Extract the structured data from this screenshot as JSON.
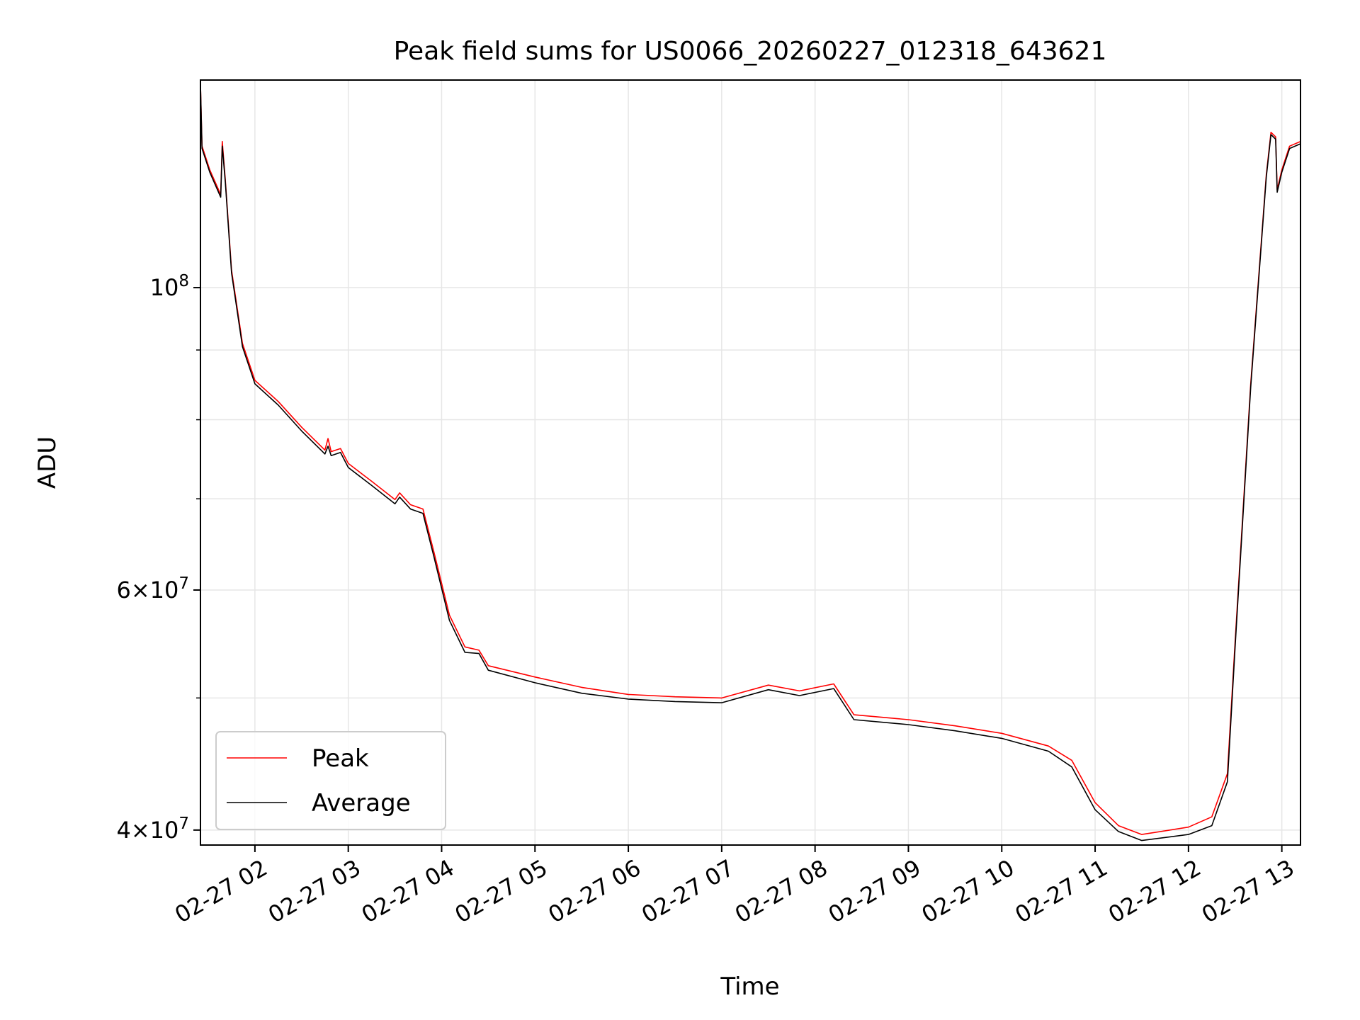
{
  "chart_data": {
    "type": "line",
    "title": "Peak field sums for US0066_20260227_012318_643621",
    "xlabel": "Time",
    "ylabel": "ADU",
    "yscale": "log",
    "xlim": [
      "2026-02-27 01:25",
      "2026-02-27 13:12"
    ],
    "ylim": [
      39000000.0,
      142000000.0
    ],
    "x_ticks": [
      {
        "value": "2026-02-27 02:00",
        "label": "02-27 02"
      },
      {
        "value": "2026-02-27 03:00",
        "label": "02-27 03"
      },
      {
        "value": "2026-02-27 04:00",
        "label": "02-27 04"
      },
      {
        "value": "2026-02-27 05:00",
        "label": "02-27 05"
      },
      {
        "value": "2026-02-27 06:00",
        "label": "02-27 06"
      },
      {
        "value": "2026-02-27 07:00",
        "label": "02-27 07"
      },
      {
        "value": "2026-02-27 08:00",
        "label": "02-27 08"
      },
      {
        "value": "2026-02-27 09:00",
        "label": "02-27 09"
      },
      {
        "value": "2026-02-27 10:00",
        "label": "02-27 10"
      },
      {
        "value": "2026-02-27 11:00",
        "label": "02-27 11"
      },
      {
        "value": "2026-02-27 12:00",
        "label": "02-27 12"
      },
      {
        "value": "2026-02-27 13:00",
        "label": "02-27 13"
      }
    ],
    "y_major_ticks": [
      {
        "value": 40000000.0,
        "mantissa": "4",
        "exponent": "7"
      },
      {
        "value": 60000000.0,
        "mantissa": "6",
        "exponent": "7"
      },
      {
        "value": 100000000.0,
        "mantissa": "",
        "exponent": "8"
      }
    ],
    "y_minor_ticks": [
      50000000.0,
      70000000.0,
      80000000.0,
      90000000.0
    ],
    "grid": true,
    "legend_position": "lower-left",
    "series": [
      {
        "name": "Peak",
        "color": "#ff0000",
        "points": [
          [
            "2026-02-27 01:25",
            141000000.0
          ],
          [
            "2026-02-27 01:26",
            127000000.0
          ],
          [
            "2026-02-27 01:31",
            122000000.0
          ],
          [
            "2026-02-27 01:38",
            117000000.0
          ],
          [
            "2026-02-27 01:39",
            128000000.0
          ],
          [
            "2026-02-27 01:41",
            120000000.0
          ],
          [
            "2026-02-27 01:45",
            103000000.0
          ],
          [
            "2026-02-27 01:52",
            91000000.0
          ],
          [
            "2026-02-27 02:00",
            85500000.0
          ],
          [
            "2026-02-27 02:15",
            82500000.0
          ],
          [
            "2026-02-27 02:30",
            79000000.0
          ],
          [
            "2026-02-27 02:45",
            76000000.0
          ],
          [
            "2026-02-27 02:47",
            77500000.0
          ],
          [
            "2026-02-27 02:49",
            75800000.0
          ],
          [
            "2026-02-27 02:55",
            76200000.0
          ],
          [
            "2026-02-27 03:00",
            74300000.0
          ],
          [
            "2026-02-27 03:15",
            72100000.0
          ],
          [
            "2026-02-27 03:30",
            69900000.0
          ],
          [
            "2026-02-27 03:33",
            70700000.0
          ],
          [
            "2026-02-27 03:40",
            69300000.0
          ],
          [
            "2026-02-27 03:48",
            68800000.0
          ],
          [
            "2026-02-27 03:55",
            64000000.0
          ],
          [
            "2026-02-27 04:05",
            57500000.0
          ],
          [
            "2026-02-27 04:15",
            54500000.0
          ],
          [
            "2026-02-27 04:24",
            54200000.0
          ],
          [
            "2026-02-27 04:30",
            52800000.0
          ],
          [
            "2026-02-27 05:00",
            51800000.0
          ],
          [
            "2026-02-27 05:30",
            50900000.0
          ],
          [
            "2026-02-27 06:00",
            50300000.0
          ],
          [
            "2026-02-27 06:30",
            50100000.0
          ],
          [
            "2026-02-27 07:00",
            50000000.0
          ],
          [
            "2026-02-27 07:30",
            51100000.0
          ],
          [
            "2026-02-27 07:50",
            50600000.0
          ],
          [
            "2026-02-27 08:12",
            51200000.0
          ],
          [
            "2026-02-27 08:25",
            48600000.0
          ],
          [
            "2026-02-27 09:00",
            48200000.0
          ],
          [
            "2026-02-27 09:30",
            47700000.0
          ],
          [
            "2026-02-27 10:00",
            47100000.0
          ],
          [
            "2026-02-27 10:30",
            46100000.0
          ],
          [
            "2026-02-27 10:45",
            45000000.0
          ],
          [
            "2026-02-27 11:00",
            41900000.0
          ],
          [
            "2026-02-27 11:15",
            40300000.0
          ],
          [
            "2026-02-27 11:30",
            39700000.0
          ],
          [
            "2026-02-27 12:00",
            40200000.0
          ],
          [
            "2026-02-27 12:15",
            40900000.0
          ],
          [
            "2026-02-27 12:25",
            44000000.0
          ],
          [
            "2026-02-27 12:30",
            55000000.0
          ],
          [
            "2026-02-27 12:40",
            85000000.0
          ],
          [
            "2026-02-27 12:50",
            121000000.0
          ],
          [
            "2026-02-27 12:53",
            130000000.0
          ],
          [
            "2026-02-27 12:56",
            129000000.0
          ],
          [
            "2026-02-27 12:57",
            118000000.0
          ],
          [
            "2026-02-27 13:00",
            122000000.0
          ],
          [
            "2026-02-27 13:05",
            127000000.0
          ],
          [
            "2026-02-27 13:12",
            128000000.0
          ]
        ]
      },
      {
        "name": "Average",
        "color": "#000000",
        "points": [
          [
            "2026-02-27 01:25",
            141000000.0
          ],
          [
            "2026-02-27 01:26",
            126500000.0
          ],
          [
            "2026-02-27 01:31",
            121500000.0
          ],
          [
            "2026-02-27 01:38",
            116500000.0
          ],
          [
            "2026-02-27 01:39",
            127000000.0
          ],
          [
            "2026-02-27 01:41",
            119500000.0
          ],
          [
            "2026-02-27 01:45",
            102500000.0
          ],
          [
            "2026-02-27 01:52",
            90500000.0
          ],
          [
            "2026-02-27 02:00",
            85000000.0
          ],
          [
            "2026-02-27 02:15",
            82000000.0
          ],
          [
            "2026-02-27 02:30",
            78500000.0
          ],
          [
            "2026-02-27 02:45",
            75500000.0
          ],
          [
            "2026-02-27 02:47",
            76500000.0
          ],
          [
            "2026-02-27 02:49",
            75300000.0
          ],
          [
            "2026-02-27 02:55",
            75700000.0
          ],
          [
            "2026-02-27 03:00",
            73800000.0
          ],
          [
            "2026-02-27 03:15",
            71600000.0
          ],
          [
            "2026-02-27 03:30",
            69400000.0
          ],
          [
            "2026-02-27 03:33",
            70200000.0
          ],
          [
            "2026-02-27 03:40",
            68800000.0
          ],
          [
            "2026-02-27 03:48",
            68300000.0
          ],
          [
            "2026-02-27 03:55",
            63500000.0
          ],
          [
            "2026-02-27 04:05",
            57000000.0
          ],
          [
            "2026-02-27 04:15",
            54000000.0
          ],
          [
            "2026-02-27 04:24",
            53900000.0
          ],
          [
            "2026-02-27 04:30",
            52400000.0
          ],
          [
            "2026-02-27 05:00",
            51300000.0
          ],
          [
            "2026-02-27 05:30",
            50400000.0
          ],
          [
            "2026-02-27 06:00",
            49900000.0
          ],
          [
            "2026-02-27 06:30",
            49700000.0
          ],
          [
            "2026-02-27 07:00",
            49600000.0
          ],
          [
            "2026-02-27 07:30",
            50700000.0
          ],
          [
            "2026-02-27 07:50",
            50200000.0
          ],
          [
            "2026-02-27 08:12",
            50800000.0
          ],
          [
            "2026-02-27 08:25",
            48200000.0
          ],
          [
            "2026-02-27 09:00",
            47800000.0
          ],
          [
            "2026-02-27 09:30",
            47300000.0
          ],
          [
            "2026-02-27 10:00",
            46700000.0
          ],
          [
            "2026-02-27 10:30",
            45700000.0
          ],
          [
            "2026-02-27 10:45",
            44500000.0
          ],
          [
            "2026-02-27 11:00",
            41400000.0
          ],
          [
            "2026-02-27 11:15",
            39900000.0
          ],
          [
            "2026-02-27 11:30",
            39300000.0
          ],
          [
            "2026-02-27 12:00",
            39700000.0
          ],
          [
            "2026-02-27 12:15",
            40300000.0
          ],
          [
            "2026-02-27 12:25",
            43400000.0
          ],
          [
            "2026-02-27 12:30",
            54500000.0
          ],
          [
            "2026-02-27 12:40",
            84500000.0
          ],
          [
            "2026-02-27 12:50",
            120500000.0
          ],
          [
            "2026-02-27 12:53",
            129500000.0
          ],
          [
            "2026-02-27 12:56",
            128500000.0
          ],
          [
            "2026-02-27 12:57",
            117500000.0
          ],
          [
            "2026-02-27 13:00",
            121500000.0
          ],
          [
            "2026-02-27 13:05",
            126500000.0
          ],
          [
            "2026-02-27 13:12",
            127500000.0
          ]
        ]
      }
    ]
  }
}
